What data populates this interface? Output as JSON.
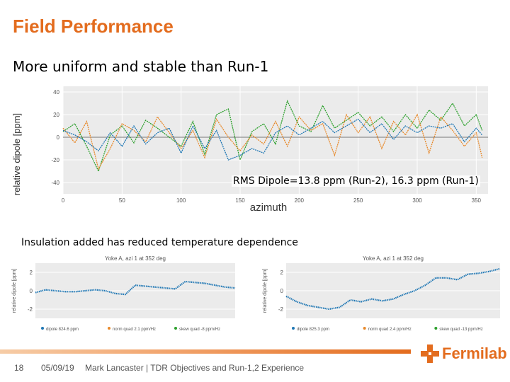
{
  "slide": {
    "title": "Field Performance",
    "subtitle": "More uniform and stable than Run-1",
    "rms_note": "RMS Dipole=13.8 ppm (Run-2), 16.3 ppm (Run-1)",
    "insulation_note": "Insulation added has reduced temperature dependence"
  },
  "footer": {
    "page_number": "18",
    "date": "05/09/19",
    "author_line": "Mark Lancaster | TDR Objectives and Run-1,2 Experience",
    "logo_text": "Fermilab"
  },
  "colors": {
    "accent": "#e36c1e",
    "run1": "#e8892a",
    "run2": "#2ca02c",
    "blue": "#1f77b4"
  },
  "chart_data": [
    {
      "type": "line",
      "ylabel": "relative dipole [ppm]",
      "xlabel": "azimuth",
      "xlim": [
        0,
        360
      ],
      "ylim": [
        -50,
        45
      ],
      "xticks": [
        0,
        50,
        100,
        150,
        200,
        250,
        300,
        350
      ],
      "yticks": [
        40,
        20,
        0,
        -20,
        -40
      ],
      "x": [
        0,
        10,
        20,
        30,
        40,
        50,
        60,
        70,
        80,
        90,
        100,
        110,
        120,
        130,
        140,
        150,
        160,
        170,
        180,
        190,
        200,
        210,
        220,
        230,
        240,
        250,
        260,
        270,
        280,
        290,
        300,
        310,
        320,
        330,
        340,
        350,
        355
      ],
      "series": [
        {
          "values": [
            5,
            12,
            -8,
            -30,
            2,
            10,
            -5,
            15,
            8,
            0,
            -8,
            14,
            -15,
            20,
            25,
            -20,
            5,
            12,
            -6,
            32,
            10,
            5,
            28,
            8,
            15,
            22,
            10,
            18,
            5,
            20,
            8,
            24,
            15,
            30,
            10,
            20,
            6
          ]
        },
        {
          "values": [
            8,
            -5,
            14,
            -28,
            -10,
            12,
            6,
            -4,
            18,
            4,
            -10,
            6,
            -18,
            16,
            0,
            -12,
            2,
            -6,
            14,
            -8,
            18,
            6,
            12,
            -16,
            20,
            4,
            18,
            -10,
            14,
            2,
            20,
            -14,
            18,
            6,
            -8,
            4,
            -18
          ]
        },
        {
          "values": [
            6,
            2,
            -4,
            -12,
            4,
            -8,
            10,
            -6,
            4,
            8,
            -14,
            10,
            -10,
            6,
            -20,
            -16,
            -10,
            -14,
            4,
            10,
            2,
            8,
            14,
            4,
            10,
            16,
            4,
            12,
            -2,
            10,
            4,
            10,
            8,
            12,
            -4,
            8,
            2
          ]
        }
      ]
    },
    {
      "type": "line",
      "title": "Yoke A, azi 1 at 352 deg",
      "ylabel": "relative dipole [ppm]",
      "ylim": [
        -3,
        3
      ],
      "yticks": [
        2,
        0,
        -2
      ],
      "legend": [
        "dipole 824.6 ppm",
        "norm quad 2.1 ppm/Hz",
        "skew quad -8 ppm/Hz"
      ],
      "series": [
        {
          "name": "dipole 824.6 ppm",
          "x": [
            0,
            5,
            10,
            15,
            20,
            25,
            30,
            35,
            40,
            45,
            50,
            55,
            60,
            65,
            70,
            75,
            80,
            85,
            90,
            95,
            100
          ],
          "values": [
            -0.2,
            0.1,
            0.0,
            -0.1,
            -0.1,
            0.0,
            0.1,
            0.0,
            -0.3,
            -0.4,
            0.6,
            0.5,
            0.4,
            0.3,
            0.2,
            1.0,
            0.9,
            0.8,
            0.6,
            0.4,
            0.3
          ]
        }
      ]
    },
    {
      "type": "line",
      "title": "Yoke A, azi 1 at 352 deg",
      "ylabel": "relative dipole [ppm]",
      "ylim": [
        -3,
        3
      ],
      "yticks": [
        2,
        0,
        -2
      ],
      "legend": [
        "dipole 825.3 ppm",
        "norm quad 2.4 ppm/Hz",
        "skew quad -13 ppm/Hz"
      ],
      "series": [
        {
          "name": "dipole 825.3 ppm",
          "x": [
            0,
            5,
            10,
            15,
            20,
            25,
            30,
            35,
            40,
            45,
            50,
            55,
            60,
            65,
            70,
            75,
            80,
            85,
            90,
            95,
            100
          ],
          "values": [
            -0.6,
            -1.2,
            -1.6,
            -1.8,
            -2.0,
            -1.8,
            -1.0,
            -1.2,
            -0.9,
            -1.1,
            -0.9,
            -0.4,
            0.0,
            0.6,
            1.4,
            1.4,
            1.2,
            1.8,
            1.9,
            2.1,
            2.4
          ]
        }
      ]
    }
  ]
}
